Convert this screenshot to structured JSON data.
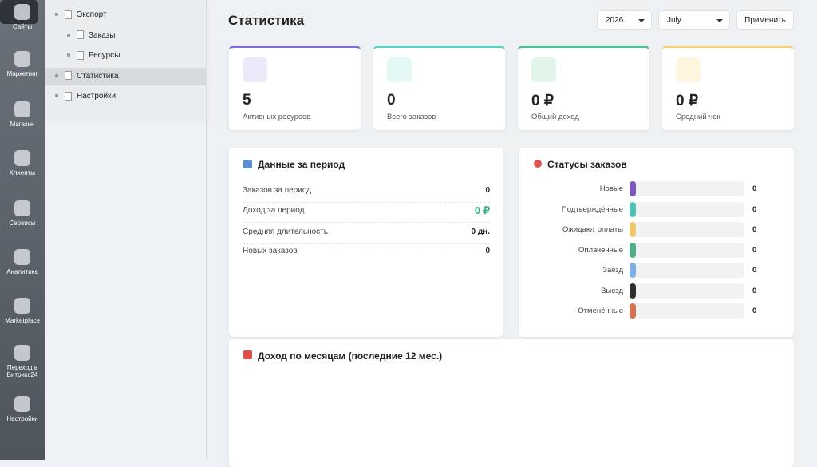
{
  "sidebar": {
    "items": [
      "Сайты",
      "Маркетинг",
      "Магазин",
      "Клиенты",
      "Сервисы",
      "Аналитика",
      "Marketplace",
      "Переход в Битрикс24",
      "Настройки"
    ]
  },
  "tree": {
    "items": [
      {
        "label": "Экспорт",
        "level": 0
      },
      {
        "label": "Заказы",
        "level": 1
      },
      {
        "label": "Ресурсы",
        "level": 1
      },
      {
        "label": "Статистика",
        "level": 0,
        "active": true
      },
      {
        "label": "Настройки",
        "level": 0
      }
    ]
  },
  "header": {
    "title": "Статистика",
    "year": "2026",
    "month": "July",
    "apply": "Применить"
  },
  "kpis": [
    {
      "value": "5",
      "label": "Активных ресурсов",
      "color": "#7b6fe0",
      "tint": "#ece9fb"
    },
    {
      "value": "0",
      "label": "Всего заказов",
      "color": "#5ccfc4",
      "tint": "#e3f7f5"
    },
    {
      "value": "0 ₽",
      "label": "Общий доход",
      "color": "#4cbf8c",
      "tint": "#e2f5ea"
    },
    {
      "value": "0 ₽",
      "label": "Средний чек",
      "color": "#f3d27a",
      "tint": "#fdf5de"
    }
  ],
  "period": {
    "title": "Данные за период",
    "rows": [
      {
        "label": "Заказов за период",
        "value": "0"
      },
      {
        "label": "Доход за период",
        "value": "0 ₽",
        "accent": "#35b07d"
      },
      {
        "label": "Средняя длительность",
        "value": "0 дн."
      },
      {
        "label": "Новых заказов",
        "value": "0"
      }
    ]
  },
  "statuses": {
    "title": "Статусы заказов",
    "rows": [
      {
        "label": "Новые",
        "value": "0",
        "color": "#7e57c2"
      },
      {
        "label": "Подтверждённые",
        "value": "0",
        "color": "#4fc3b8"
      },
      {
        "label": "Ожидают оплаты",
        "value": "0",
        "color": "#f2c76b"
      },
      {
        "label": "Оплаченные",
        "value": "0",
        "color": "#4caf8a"
      },
      {
        "label": "Заезд",
        "value": "0",
        "color": "#7fb0e8"
      },
      {
        "label": "Выезд",
        "value": "0",
        "color": "#2e2e2e"
      },
      {
        "label": "Отменённые",
        "value": "0",
        "color": "#d9704f"
      }
    ]
  },
  "revenue": {
    "title": "Доход по месяцам (последние 12 мес.)"
  }
}
